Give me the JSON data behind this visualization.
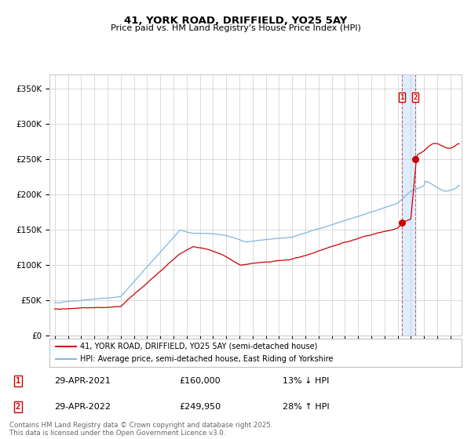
{
  "title": "41, YORK ROAD, DRIFFIELD, YO25 5AY",
  "subtitle": "Price paid vs. HM Land Registry's House Price Index (HPI)",
  "legend_line1": "41, YORK ROAD, DRIFFIELD, YO25 5AY (semi-detached house)",
  "legend_line2": "HPI: Average price, semi-detached house, East Riding of Yorkshire",
  "transaction1_label": "1",
  "transaction1_date": "29-APR-2021",
  "transaction1_price": "£160,000",
  "transaction1_hpi": "13% ↓ HPI",
  "transaction2_label": "2",
  "transaction2_date": "29-APR-2022",
  "transaction2_price": "£249,950",
  "transaction2_hpi": "28% ↑ HPI",
  "footnote": "Contains HM Land Registry data © Crown copyright and database right 2025.\nThis data is licensed under the Open Government Licence v3.0.",
  "hpi_color": "#7EB6E0",
  "price_color": "#CC0000",
  "highlight_color": "#DDEEFF",
  "grid_color": "#CCCCCC",
  "bg_color": "#FFFFFF",
  "ylim": [
    0,
    370000
  ],
  "yticks": [
    0,
    50000,
    100000,
    150000,
    200000,
    250000,
    300000,
    350000
  ],
  "year_start": 1995,
  "year_end": 2025,
  "transaction1_year": 2021.33,
  "transaction2_year": 2022.33,
  "transaction1_price_val": 160000,
  "transaction2_price_val": 249950
}
